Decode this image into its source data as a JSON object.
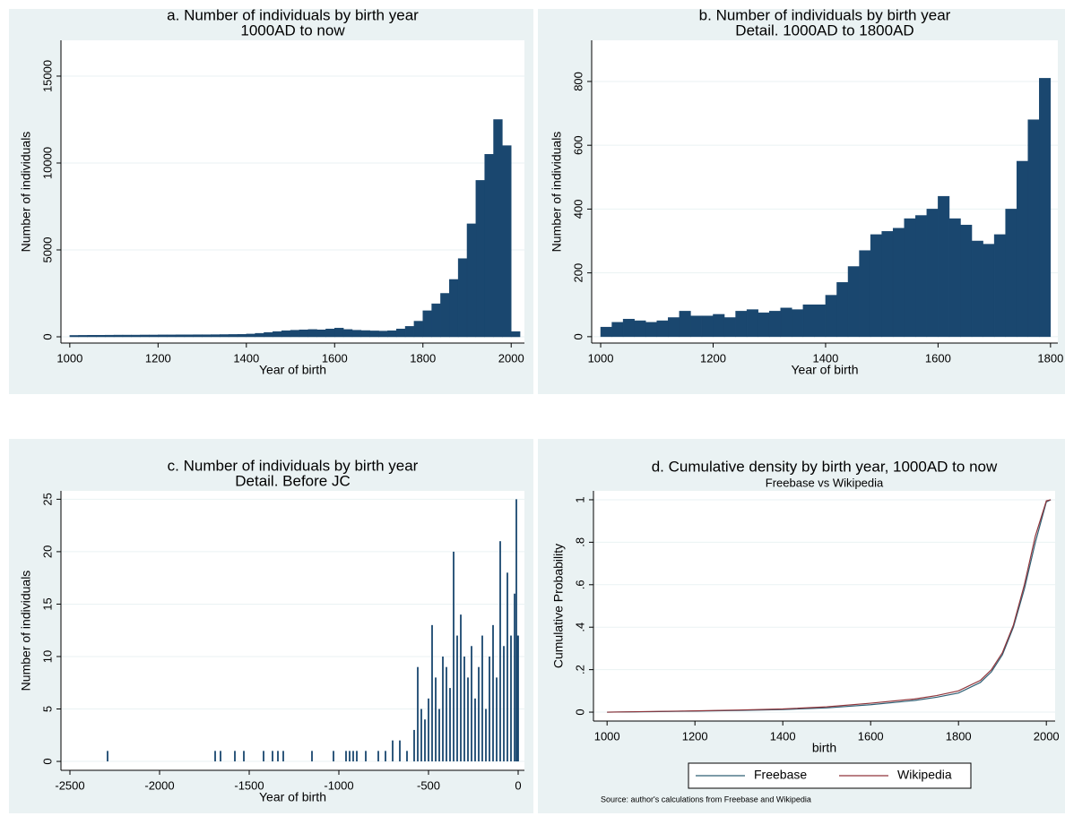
{
  "chart_data": [
    {
      "type": "histogram",
      "title": "a. Number of individuals by birth year",
      "subtitle": "1000AD to now",
      "x_label": "Year of birth",
      "y_label": "Number of individuals",
      "color": "#1a476f",
      "grid": true,
      "bins": [
        1000,
        1020,
        1040,
        1060,
        1080,
        1100,
        1120,
        1140,
        1160,
        1180,
        1200,
        1220,
        1240,
        1260,
        1280,
        1300,
        1320,
        1340,
        1360,
        1380,
        1400,
        1420,
        1440,
        1460,
        1480,
        1500,
        1520,
        1540,
        1560,
        1580,
        1600,
        1620,
        1640,
        1660,
        1680,
        1700,
        1720,
        1740,
        1760,
        1780,
        1800,
        1820,
        1840,
        1860,
        1880,
        1900,
        1920,
        1940,
        1960,
        1980,
        2000,
        2020
      ],
      "values": [
        80,
        85,
        90,
        90,
        95,
        100,
        100,
        100,
        105,
        105,
        110,
        110,
        115,
        115,
        120,
        120,
        125,
        130,
        135,
        140,
        160,
        200,
        250,
        300,
        350,
        380,
        400,
        420,
        400,
        450,
        500,
        420,
        380,
        360,
        340,
        330,
        350,
        450,
        600,
        900,
        1500,
        1900,
        2500,
        3300,
        4500,
        6500,
        9000,
        10500,
        12500,
        11000,
        300
      ],
      "xlim": [
        980,
        2030
      ],
      "ylim": [
        -360,
        17060
      ],
      "xticks": [
        1000,
        1200,
        1400,
        1600,
        1800,
        2000
      ],
      "yticks": [
        0,
        5000,
        10000,
        15000
      ]
    },
    {
      "type": "histogram",
      "title": "b. Number of individuals by birth year",
      "subtitle": "Detail. 1000AD to 1800AD",
      "x_label": "Year of birth",
      "y_label": "Number of individuals",
      "color": "#1a476f",
      "grid": true,
      "bins": [
        1000,
        1020,
        1040,
        1060,
        1080,
        1100,
        1120,
        1140,
        1160,
        1180,
        1200,
        1220,
        1240,
        1260,
        1280,
        1300,
        1320,
        1340,
        1360,
        1380,
        1400,
        1420,
        1440,
        1460,
        1480,
        1500,
        1520,
        1540,
        1560,
        1580,
        1600,
        1620,
        1640,
        1660,
        1680,
        1700,
        1720,
        1740,
        1760,
        1780,
        1800
      ],
      "values": [
        30,
        45,
        55,
        50,
        45,
        50,
        60,
        80,
        65,
        65,
        70,
        60,
        80,
        85,
        75,
        80,
        90,
        85,
        100,
        100,
        130,
        170,
        220,
        270,
        320,
        330,
        340,
        370,
        380,
        400,
        440,
        370,
        350,
        300,
        290,
        320,
        400,
        550,
        680,
        810
      ],
      "xlim": [
        984,
        1813
      ],
      "ylim": [
        -20,
        929
      ],
      "xticks": [
        1000,
        1200,
        1400,
        1600,
        1800
      ],
      "yticks": [
        0,
        200,
        400,
        600,
        800
      ]
    },
    {
      "type": "bar",
      "title": "c. Number of individuals by birth year",
      "subtitle": "Detail. Before JC",
      "x_label": "Year of birth",
      "y_label": "Number of individuals",
      "color": "#1a476f",
      "grid": true,
      "x": [
        -2290,
        -1690,
        -1660,
        -1580,
        -1530,
        -1420,
        -1370,
        -1340,
        -1310,
        -1150,
        -1030,
        -960,
        -940,
        -920,
        -900,
        -850,
        -780,
        -740,
        -700,
        -660,
        -620,
        -580,
        -560,
        -540,
        -520,
        -500,
        -480,
        -460,
        -440,
        -420,
        -400,
        -380,
        -360,
        -340,
        -320,
        -300,
        -280,
        -260,
        -240,
        -220,
        -200,
        -180,
        -160,
        -140,
        -120,
        -100,
        -80,
        -60,
        -40,
        -20,
        -10,
        -5,
        0
      ],
      "values": [
        1,
        1,
        1,
        1,
        1,
        1,
        1,
        1,
        1,
        1,
        1,
        1,
        1,
        1,
        1,
        1,
        1,
        1,
        2,
        2,
        1,
        3,
        9,
        5,
        4,
        6,
        13,
        8,
        5,
        10,
        9,
        7,
        20,
        12,
        14,
        10,
        8,
        11,
        6,
        9,
        12,
        5,
        10,
        13,
        8,
        21,
        11,
        18,
        12,
        16,
        25,
        12,
        12
      ],
      "xlim": [
        -2550,
        35
      ],
      "ylim": [
        -0.85,
        25.8
      ],
      "xticks": [
        -2500,
        -2000,
        -1500,
        -1000,
        -500,
        0
      ],
      "yticks": [
        0,
        5,
        10,
        15,
        20,
        25
      ]
    },
    {
      "type": "line",
      "title": "d. Cumulative density by birth year, 1000AD to now",
      "subtitle": "Freebase vs Wikipedia",
      "x_label": "birth",
      "y_label": "Cumulative Probability",
      "grid": true,
      "legend": "bottom",
      "note": "Source: author's calculations from Freebase and Wikipedia",
      "x": [
        1000,
        1100,
        1200,
        1300,
        1400,
        1500,
        1600,
        1700,
        1750,
        1800,
        1850,
        1875,
        1900,
        1925,
        1950,
        1975,
        2000,
        2010
      ],
      "series": [
        {
          "name": "Freebase",
          "color": "#2f5f74",
          "values": [
            0,
            0.002,
            0.005,
            0.008,
            0.012,
            0.02,
            0.035,
            0.055,
            0.07,
            0.09,
            0.14,
            0.19,
            0.27,
            0.4,
            0.58,
            0.8,
            0.99,
            1
          ]
        },
        {
          "name": "Wikipedia",
          "color": "#90353b",
          "values": [
            0,
            0.003,
            0.006,
            0.01,
            0.015,
            0.025,
            0.042,
            0.062,
            0.078,
            0.1,
            0.15,
            0.2,
            0.28,
            0.41,
            0.6,
            0.83,
            0.995,
            1
          ]
        }
      ],
      "xlim": [
        969,
        2020
      ],
      "ylim": [
        -0.042,
        1.042
      ],
      "xticks": [
        1000,
        1200,
        1400,
        1600,
        1800,
        2000
      ],
      "yticks": [
        0,
        {
          "value": 0.2,
          "label": ".2"
        },
        {
          "value": 0.4,
          "label": ".4"
        },
        {
          "value": 0.6,
          "label": ".6"
        },
        {
          "value": 0.8,
          "label": ".8"
        },
        1
      ]
    }
  ]
}
